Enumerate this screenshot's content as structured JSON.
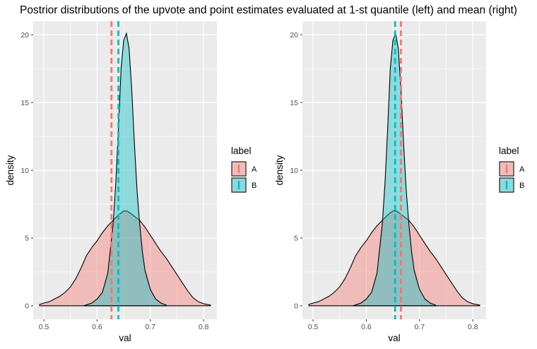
{
  "figure_title": "Postrior distributions of the upvote and point estimates evaluated at 1-st quantile (left) and mean (right)",
  "colors": {
    "A": "#F8766D",
    "B": "#00BFC4",
    "panel_bg": "#EBEBEB",
    "grid": "#FFFFFF",
    "outline": "#000000"
  },
  "chart_data": [
    {
      "type": "area",
      "xlabel": "val",
      "ylabel": "density",
      "xlim": [
        0.48,
        0.825
      ],
      "ylim": [
        -1.0,
        21.0
      ],
      "xticks": [
        0.5,
        0.6,
        0.7,
        0.8
      ],
      "xtick_labels": [
        "0.5",
        "0.6",
        "0.7",
        "0.8"
      ],
      "yticks": [
        0,
        5,
        10,
        15,
        20
      ],
      "ytick_labels": [
        "0",
        "5",
        "10",
        "15",
        "20"
      ],
      "grid": true,
      "legend": {
        "title": "label",
        "position": "right",
        "entries": [
          "A",
          "B"
        ]
      },
      "series": [
        {
          "name": "A",
          "fill_alpha": 0.4,
          "x": [
            0.492,
            0.5,
            0.51,
            0.52,
            0.53,
            0.54,
            0.55,
            0.56,
            0.57,
            0.58,
            0.59,
            0.6,
            0.61,
            0.62,
            0.63,
            0.64,
            0.65,
            0.655,
            0.66,
            0.67,
            0.68,
            0.69,
            0.7,
            0.71,
            0.72,
            0.73,
            0.74,
            0.75,
            0.76,
            0.77,
            0.78,
            0.79,
            0.8,
            0.813
          ],
          "y": [
            0.1,
            0.2,
            0.3,
            0.5,
            0.7,
            1.0,
            1.4,
            2.0,
            2.8,
            3.7,
            4.3,
            4.8,
            5.4,
            5.9,
            6.3,
            6.7,
            7.0,
            7.0,
            6.9,
            6.6,
            6.3,
            5.8,
            5.2,
            4.6,
            4.0,
            3.5,
            2.9,
            2.3,
            1.7,
            1.1,
            0.6,
            0.3,
            0.15,
            0.05
          ]
        },
        {
          "name": "B",
          "fill_alpha": 0.4,
          "x": [
            0.575,
            0.59,
            0.6,
            0.61,
            0.62,
            0.63,
            0.635,
            0.64,
            0.645,
            0.65,
            0.655,
            0.66,
            0.665,
            0.67,
            0.675,
            0.68,
            0.685,
            0.69,
            0.7,
            0.71,
            0.72,
            0.73
          ],
          "y": [
            0.0,
            0.2,
            0.5,
            1.0,
            2.4,
            6.0,
            9.0,
            13.0,
            17.5,
            19.6,
            20.1,
            19.0,
            16.0,
            12.0,
            8.5,
            6.0,
            4.0,
            2.6,
            1.2,
            0.5,
            0.2,
            0.05
          ]
        }
      ],
      "vlines": [
        {
          "series": "A",
          "x": 0.627
        },
        {
          "series": "B",
          "x": 0.64
        }
      ]
    },
    {
      "type": "area",
      "xlabel": "val",
      "ylabel": "density",
      "xlim": [
        0.48,
        0.825
      ],
      "ylim": [
        -1.0,
        21.0
      ],
      "xticks": [
        0.5,
        0.6,
        0.7,
        0.8
      ],
      "xtick_labels": [
        "0.5",
        "0.6",
        "0.7",
        "0.8"
      ],
      "yticks": [
        0,
        5,
        10,
        15,
        20
      ],
      "ytick_labels": [
        "0",
        "5",
        "10",
        "15",
        "20"
      ],
      "grid": true,
      "legend": {
        "title": "label",
        "position": "right",
        "entries": [
          "A",
          "B"
        ]
      },
      "series": [
        {
          "name": "A",
          "fill_alpha": 0.4,
          "x": [
            0.492,
            0.5,
            0.51,
            0.52,
            0.53,
            0.54,
            0.55,
            0.56,
            0.57,
            0.58,
            0.59,
            0.6,
            0.61,
            0.62,
            0.63,
            0.64,
            0.65,
            0.655,
            0.66,
            0.67,
            0.68,
            0.69,
            0.7,
            0.71,
            0.72,
            0.73,
            0.74,
            0.75,
            0.76,
            0.77,
            0.78,
            0.79,
            0.8,
            0.813
          ],
          "y": [
            0.1,
            0.2,
            0.3,
            0.5,
            0.7,
            1.0,
            1.4,
            2.0,
            2.8,
            3.7,
            4.3,
            4.8,
            5.4,
            5.9,
            6.3,
            6.7,
            7.0,
            7.0,
            6.9,
            6.6,
            6.3,
            5.8,
            5.2,
            4.6,
            4.0,
            3.5,
            2.9,
            2.3,
            1.7,
            1.1,
            0.6,
            0.3,
            0.15,
            0.05
          ]
        },
        {
          "name": "B",
          "fill_alpha": 0.4,
          "x": [
            0.575,
            0.59,
            0.6,
            0.61,
            0.62,
            0.63,
            0.635,
            0.64,
            0.645,
            0.65,
            0.655,
            0.66,
            0.665,
            0.67,
            0.675,
            0.68,
            0.685,
            0.69,
            0.7,
            0.71,
            0.72,
            0.73
          ],
          "y": [
            0.0,
            0.2,
            0.5,
            1.0,
            2.4,
            6.0,
            9.0,
            13.0,
            17.5,
            19.6,
            20.1,
            19.0,
            16.0,
            12.0,
            8.5,
            6.0,
            4.0,
            2.6,
            1.2,
            0.5,
            0.2,
            0.05
          ]
        }
      ],
      "vlines": [
        {
          "series": "A",
          "x": 0.665
        },
        {
          "series": "B",
          "x": 0.654
        }
      ]
    }
  ]
}
